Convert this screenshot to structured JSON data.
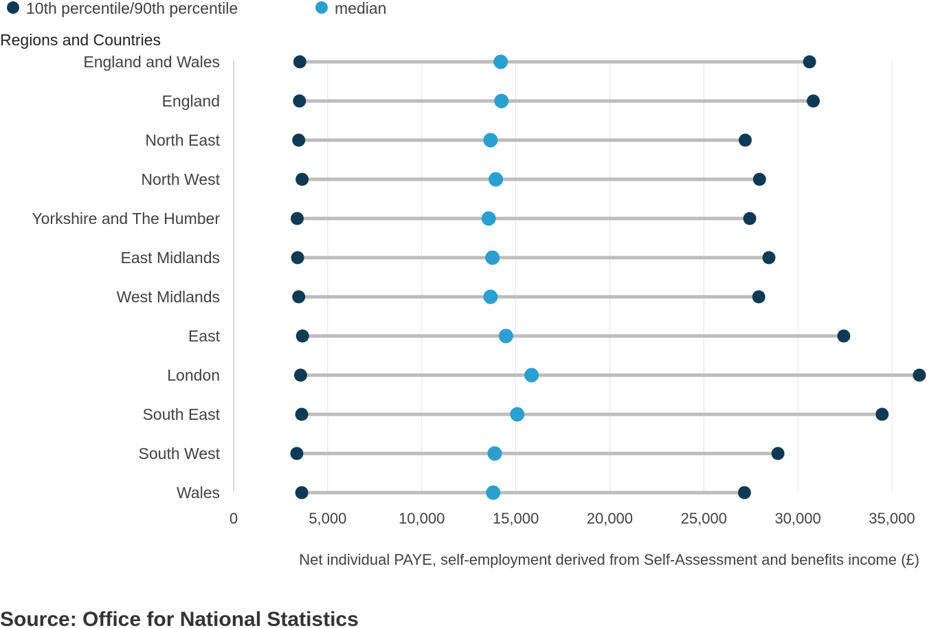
{
  "legend": {
    "items": [
      {
        "label": "10th percentile/90th percentile",
        "color": "#0f3a55"
      },
      {
        "label": "median",
        "color": "#2a9fd0"
      }
    ]
  },
  "source": "Source: Office for National Statistics",
  "chart_data": {
    "type": "dot-range",
    "ylabel": "Regions and Countries",
    "xlabel": "Net individual PAYE, self-employment derived from Self-Assessment and benefits income (£)",
    "xlim": [
      0,
      36500
    ],
    "xticks": [
      0,
      5000,
      10000,
      15000,
      20000,
      25000,
      30000,
      35000
    ],
    "xtick_labels": [
      "0",
      "5,000",
      "10,000",
      "15,000",
      "20,000",
      "25,000",
      "30,000",
      "35,000"
    ],
    "grid": "vertical",
    "legend_position": "top-left",
    "categories": [
      "England and Wales",
      "England",
      "North East",
      "North West",
      "Yorkshire and The Humber",
      "East Midlands",
      "West Midlands",
      "East",
      "London",
      "South East",
      "South West",
      "Wales"
    ],
    "series": [
      {
        "name": "10th percentile/90th percentile",
        "role": "p10",
        "color": "#0f3a55",
        "values": [
          3520,
          3500,
          3460,
          3640,
          3380,
          3400,
          3460,
          3660,
          3560,
          3620,
          3360,
          3620
        ]
      },
      {
        "name": "median",
        "color": "#2a9fd0",
        "values": [
          14200,
          14240,
          13660,
          13940,
          13560,
          13760,
          13660,
          14480,
          15840,
          15080,
          13880,
          13800
        ]
      },
      {
        "name": "10th percentile/90th percentile",
        "role": "p90",
        "color": "#0f3a55",
        "values": [
          30620,
          30820,
          27200,
          27960,
          27440,
          28460,
          27920,
          32440,
          36460,
          34480,
          28940,
          27160
        ]
      }
    ]
  }
}
